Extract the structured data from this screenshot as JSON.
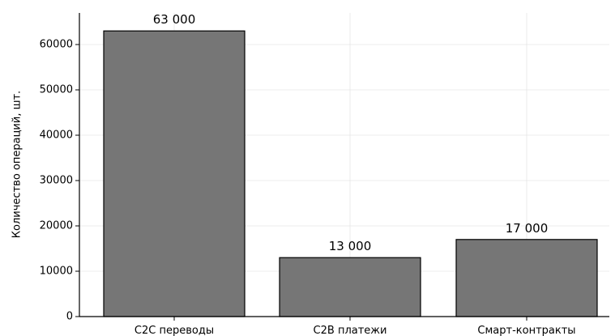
{
  "chart_data": {
    "type": "bar",
    "title": "",
    "xlabel": "",
    "ylabel": "Количество операций, шт.",
    "categories": [
      "C2C переводы",
      "C2B платежи",
      "Смарт-контракты"
    ],
    "values": [
      63000,
      13000,
      17000
    ],
    "data_labels": [
      "63 000",
      "13 000",
      "17 000"
    ],
    "ylim": [
      0,
      66500
    ],
    "yticks": [
      0,
      10000,
      20000,
      30000,
      40000,
      50000,
      60000
    ],
    "grid": true,
    "bar_color": "#767676",
    "bar_edge_color": "#000000",
    "grid_color": "#e6e6e6"
  }
}
